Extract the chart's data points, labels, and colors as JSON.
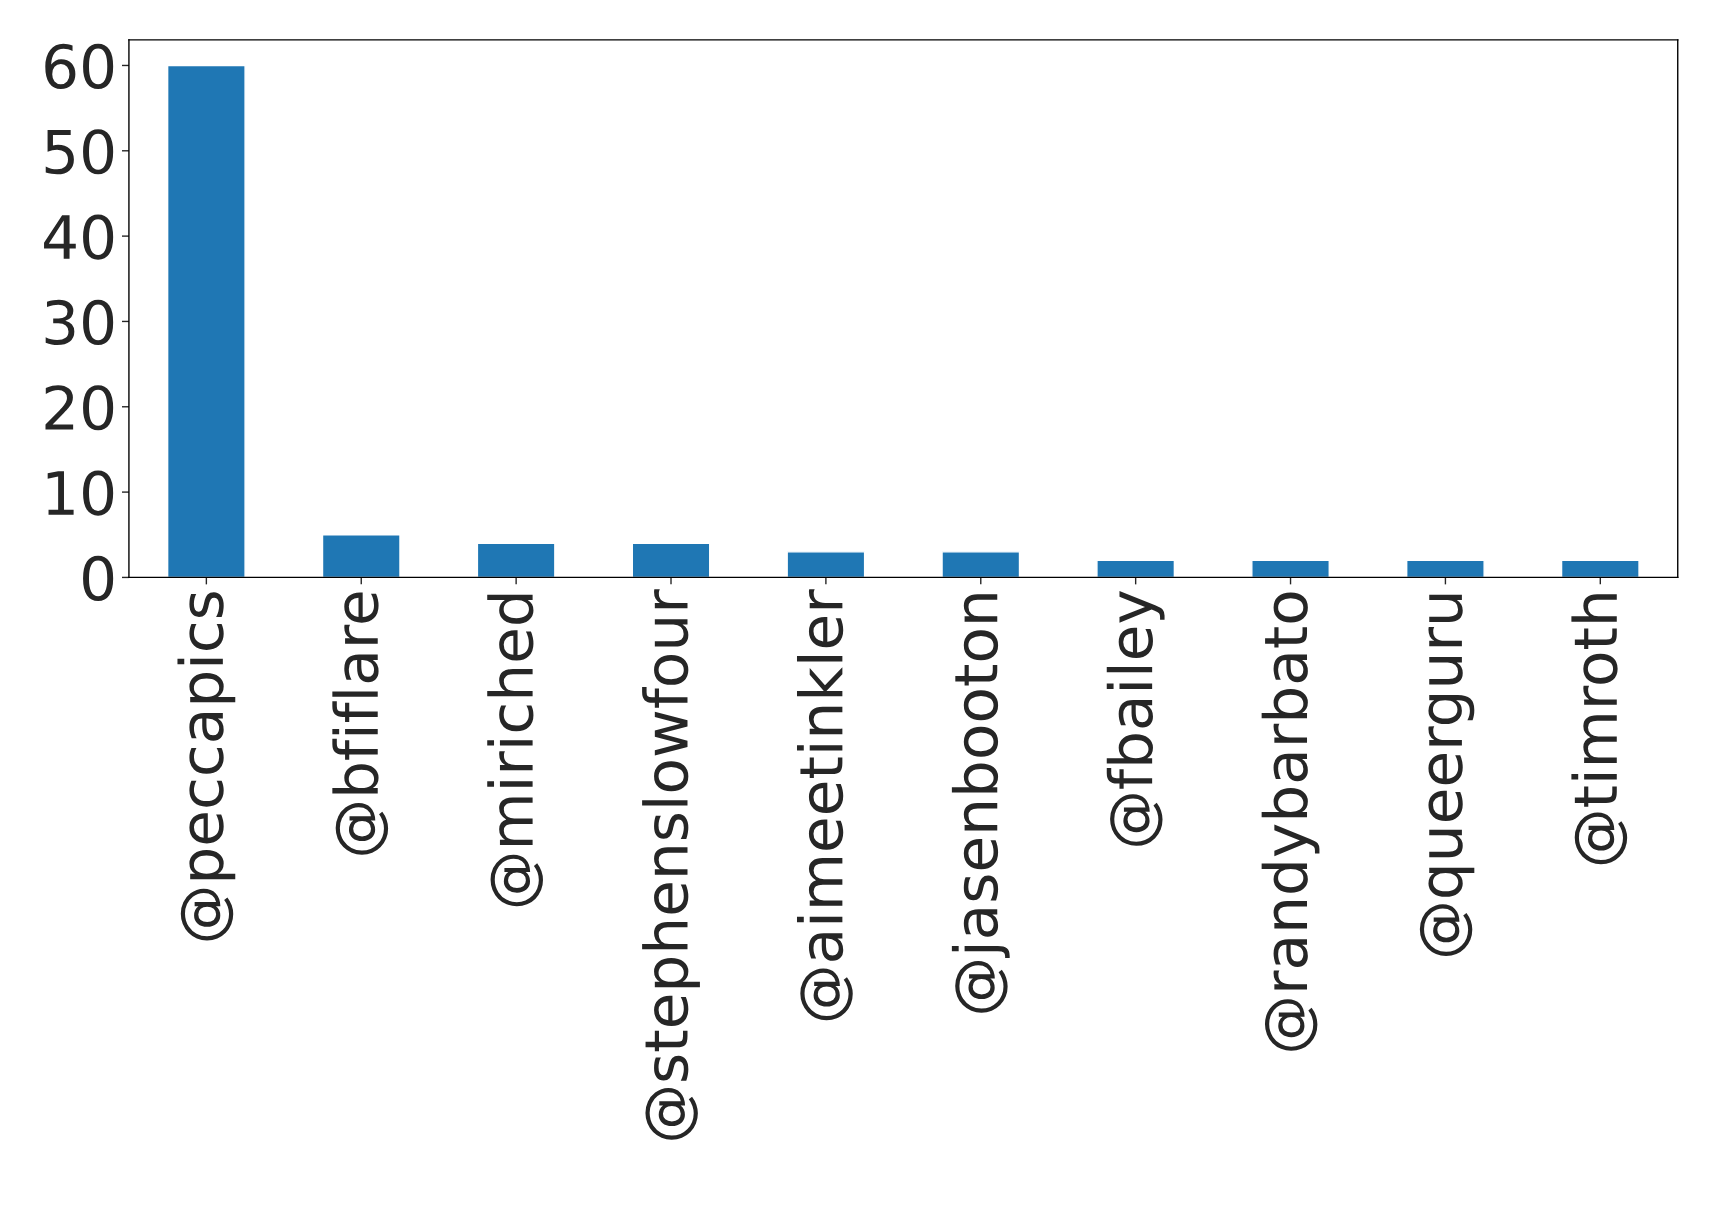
{
  "chart_data": {
    "type": "bar",
    "categories": [
      "@peccapics",
      "@bfiflare",
      "@miriched",
      "@stephenslowfour",
      "@aimeetinkler",
      "@jasenbooton",
      "@fbailey",
      "@randybarbato",
      "@queerguru",
      "@timroth"
    ],
    "values": [
      60,
      5,
      4,
      4,
      3,
      3,
      2,
      2,
      2,
      2
    ],
    "color": "#1f77b4",
    "ylim": [
      0,
      63
    ],
    "yticks": [
      0,
      10,
      20,
      30,
      40,
      50,
      60
    ],
    "grid": false,
    "legend": false
  }
}
